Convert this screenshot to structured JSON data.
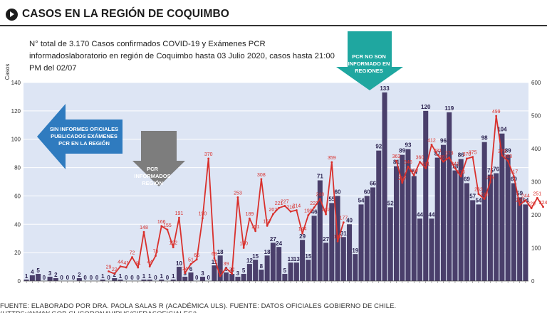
{
  "header": {
    "title": "CASOS EN LA REGIÓN DE COQUIMBO"
  },
  "subtitle": "N° total de 3.170 Casos confirmados COVID-19 y Exámenes PCR informadoslaboratorio en región de Coquimbo hasta 03 Julio 2020, casos hasta 21:00 PM del 02/07",
  "source": "FUENTE: ELABORADO POR DRA. PAOLA SALAS R (ACADÉMICA ULS). FUENTE: DATOS OFICIALES GOBIERNO DE CHILE. (HTTPS://WWW.GOB.CL/CORONAVIRUS/CIFRASOFICIALES/)",
  "colors": {
    "bars": "#4a3f6b",
    "line": "#d9302c",
    "plot_bg": "#dde5f4",
    "gridline": "#ffffff",
    "arrow_left": "#2f7bbf",
    "arrow_down_gray": "#7d7d7d",
    "arrow_down_teal": "#1fa7a0"
  },
  "callouts": {
    "left_arrow": "SIN INFORMES OFICIALES PUBLICADOS EXÁMENES PCR EN LA REGIÓN",
    "gray_arrow": "PCR INFORMADOS REGIÓN",
    "teal_arrow": "PCR NO SON INFORMADO EN REGIONES"
  },
  "chart_data": {
    "type": "bar",
    "ylabel": "Casos",
    "ylim": [
      0,
      140
    ],
    "y_ticks": [
      0,
      20,
      40,
      60,
      80,
      100,
      120,
      140
    ],
    "y2lim": [
      0,
      600
    ],
    "y2_ticks": [
      0,
      100,
      200,
      300,
      400,
      500,
      600
    ],
    "grid": true,
    "series": [
      {
        "type": "bar",
        "axis": "left",
        "values": [
          1,
          4,
          5,
          0,
          3,
          2,
          0,
          0,
          0,
          2,
          0,
          0,
          0,
          1,
          0,
          2,
          1,
          0,
          0,
          0,
          1,
          1,
          0,
          1,
          0,
          1,
          10,
          3,
          6,
          0,
          3,
          0,
          11,
          18,
          6,
          5,
          3,
          5,
          12,
          15,
          8,
          18,
          27,
          24,
          5,
          13,
          13,
          29,
          15,
          46,
          71,
          27,
          55,
          60,
          31,
          40,
          19,
          54,
          60,
          66,
          92,
          133,
          52,
          81,
          89,
          93,
          74,
          44,
          120,
          44,
          87,
          96,
          119,
          78,
          86,
          69,
          57,
          54,
          98,
          75,
          76,
          104,
          89,
          69,
          59,
          54
        ],
        "labels": [
          "1",
          "4",
          "5",
          "0",
          "3",
          "2",
          "0",
          "0",
          "0",
          "2",
          "0",
          "0",
          "0",
          "1",
          "0",
          "2",
          "1",
          "0",
          "0",
          "0",
          "1",
          "1",
          "0",
          "1",
          "0",
          "1",
          "10",
          "3",
          "6",
          "0",
          "3",
          "0",
          "11",
          "18",
          "6",
          "5",
          "3",
          "5",
          "12",
          "15",
          "8",
          "18",
          "27",
          "24",
          "5",
          "13",
          "13",
          "29",
          "15",
          "46",
          "71",
          "27",
          "55",
          "60",
          "31",
          "40",
          "19",
          "54",
          "60",
          "66",
          "92",
          "133",
          "52",
          "81",
          "89",
          "93",
          "74",
          "44",
          "120",
          "44",
          "87",
          "96",
          "119",
          "78",
          "86",
          "69",
          "57",
          "54",
          "98",
          "75",
          "76",
          "104",
          "89",
          "69",
          "59",
          "54"
        ]
      },
      {
        "type": "line",
        "axis": "right",
        "start_index": 14,
        "values": [
          29,
          22,
          44,
          41,
          72,
          41,
          148,
          44,
          76,
          166,
          155,
          102,
          191,
          24,
          51,
          65,
          190,
          370,
          69,
          15,
          39,
          22,
          253,
          100,
          189,
          151,
          308,
          167,
          202,
          221,
          227,
          210,
          214,
          144,
          199,
          222,
          248,
          202,
          359,
          120,
          177,
          null,
          null,
          null,
          null,
          null,
          null,
          null,
          null,
          363,
          297,
          346,
          320,
          360,
          341,
          412,
          381,
          361,
          373,
          341,
          316,
          370,
          375,
          263,
          248,
          299,
          499,
          379,
          363,
          317,
          230,
          244,
          220,
          251,
          224
        ],
        "labels": [
          "29",
          "22",
          "44",
          "41",
          "72",
          "41",
          "148",
          "44",
          "76",
          "166",
          "155",
          "102",
          "191",
          "24",
          "51",
          "65",
          "190",
          "370",
          "69",
          "15",
          "39",
          "22",
          "253",
          "100",
          "189",
          "151",
          "308",
          "167",
          "202",
          "221",
          "227",
          "210",
          "214",
          "144",
          "199",
          "222",
          "248",
          "202",
          "359",
          "120",
          "177",
          "",
          "",
          "",
          "",
          "",
          "",
          "",
          "",
          "363",
          "297",
          "346",
          "320",
          "360",
          "341",
          "412",
          "381",
          "361",
          "373",
          "341",
          "316",
          "370",
          "375",
          "263",
          "248",
          "299",
          "499",
          "379",
          "363",
          "317",
          "230",
          "244",
          "220",
          "251",
          "224"
        ]
      }
    ]
  }
}
